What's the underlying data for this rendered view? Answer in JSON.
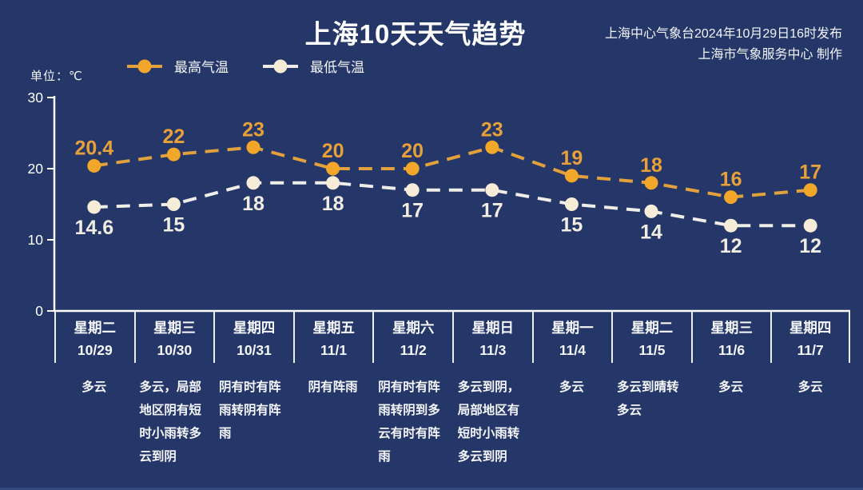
{
  "header": {
    "title": "上海10天天气趋势",
    "source_line1": "上海中心气象台2024年10月29日16时发布",
    "source_line2": "上海市气象服务中心 制作"
  },
  "chart_data": {
    "type": "line",
    "title": "上海10天天气趋势",
    "unit_label": "单位：℃",
    "ylabel": "℃",
    "ylim": [
      0,
      30
    ],
    "yticks": [
      0,
      10,
      20,
      30
    ],
    "grid": false,
    "legend_position": "top-left",
    "line_style": "dashed",
    "categories": [
      {
        "weekday": "星期二",
        "date": "10/29",
        "weather": "多云"
      },
      {
        "weekday": "星期三",
        "date": "10/30",
        "weather": "多云，局部地区阴有短时小雨转多云到阴"
      },
      {
        "weekday": "星期四",
        "date": "10/31",
        "weather": "阴有时有阵雨转阴有阵雨"
      },
      {
        "weekday": "星期五",
        "date": "11/1",
        "weather": "阴有阵雨"
      },
      {
        "weekday": "星期六",
        "date": "11/2",
        "weather": "阴有时有阵雨转阴到多云有时有阵雨"
      },
      {
        "weekday": "星期日",
        "date": "11/3",
        "weather": "多云到阴，局部地区有短时小雨转多云到阴"
      },
      {
        "weekday": "星期一",
        "date": "11/4",
        "weather": "多云"
      },
      {
        "weekday": "星期二",
        "date": "11/5",
        "weather": "多云到晴转多云"
      },
      {
        "weekday": "星期三",
        "date": "11/6",
        "weather": "多云"
      },
      {
        "weekday": "星期四",
        "date": "11/7",
        "weather": "多云"
      }
    ],
    "series": [
      {
        "name": "最高气温",
        "values": [
          20.4,
          22,
          23,
          20,
          20,
          23,
          19,
          18,
          16,
          17
        ],
        "line_color": "#E2A13C",
        "dot_color": "#F3A72A",
        "label_color": "#E8A138",
        "label_position": "above"
      },
      {
        "name": "最低气温",
        "values": [
          14.6,
          15,
          18,
          18,
          17,
          17,
          15,
          14,
          12,
          12
        ],
        "line_color": "#EFEDE8",
        "dot_color": "#F7ECD7",
        "label_color": "#F2EDE3",
        "label_position": "below"
      }
    ],
    "colors": {
      "background": "#253768",
      "axis": "#FFFFFF",
      "bottom_strip": "#32497E"
    }
  }
}
